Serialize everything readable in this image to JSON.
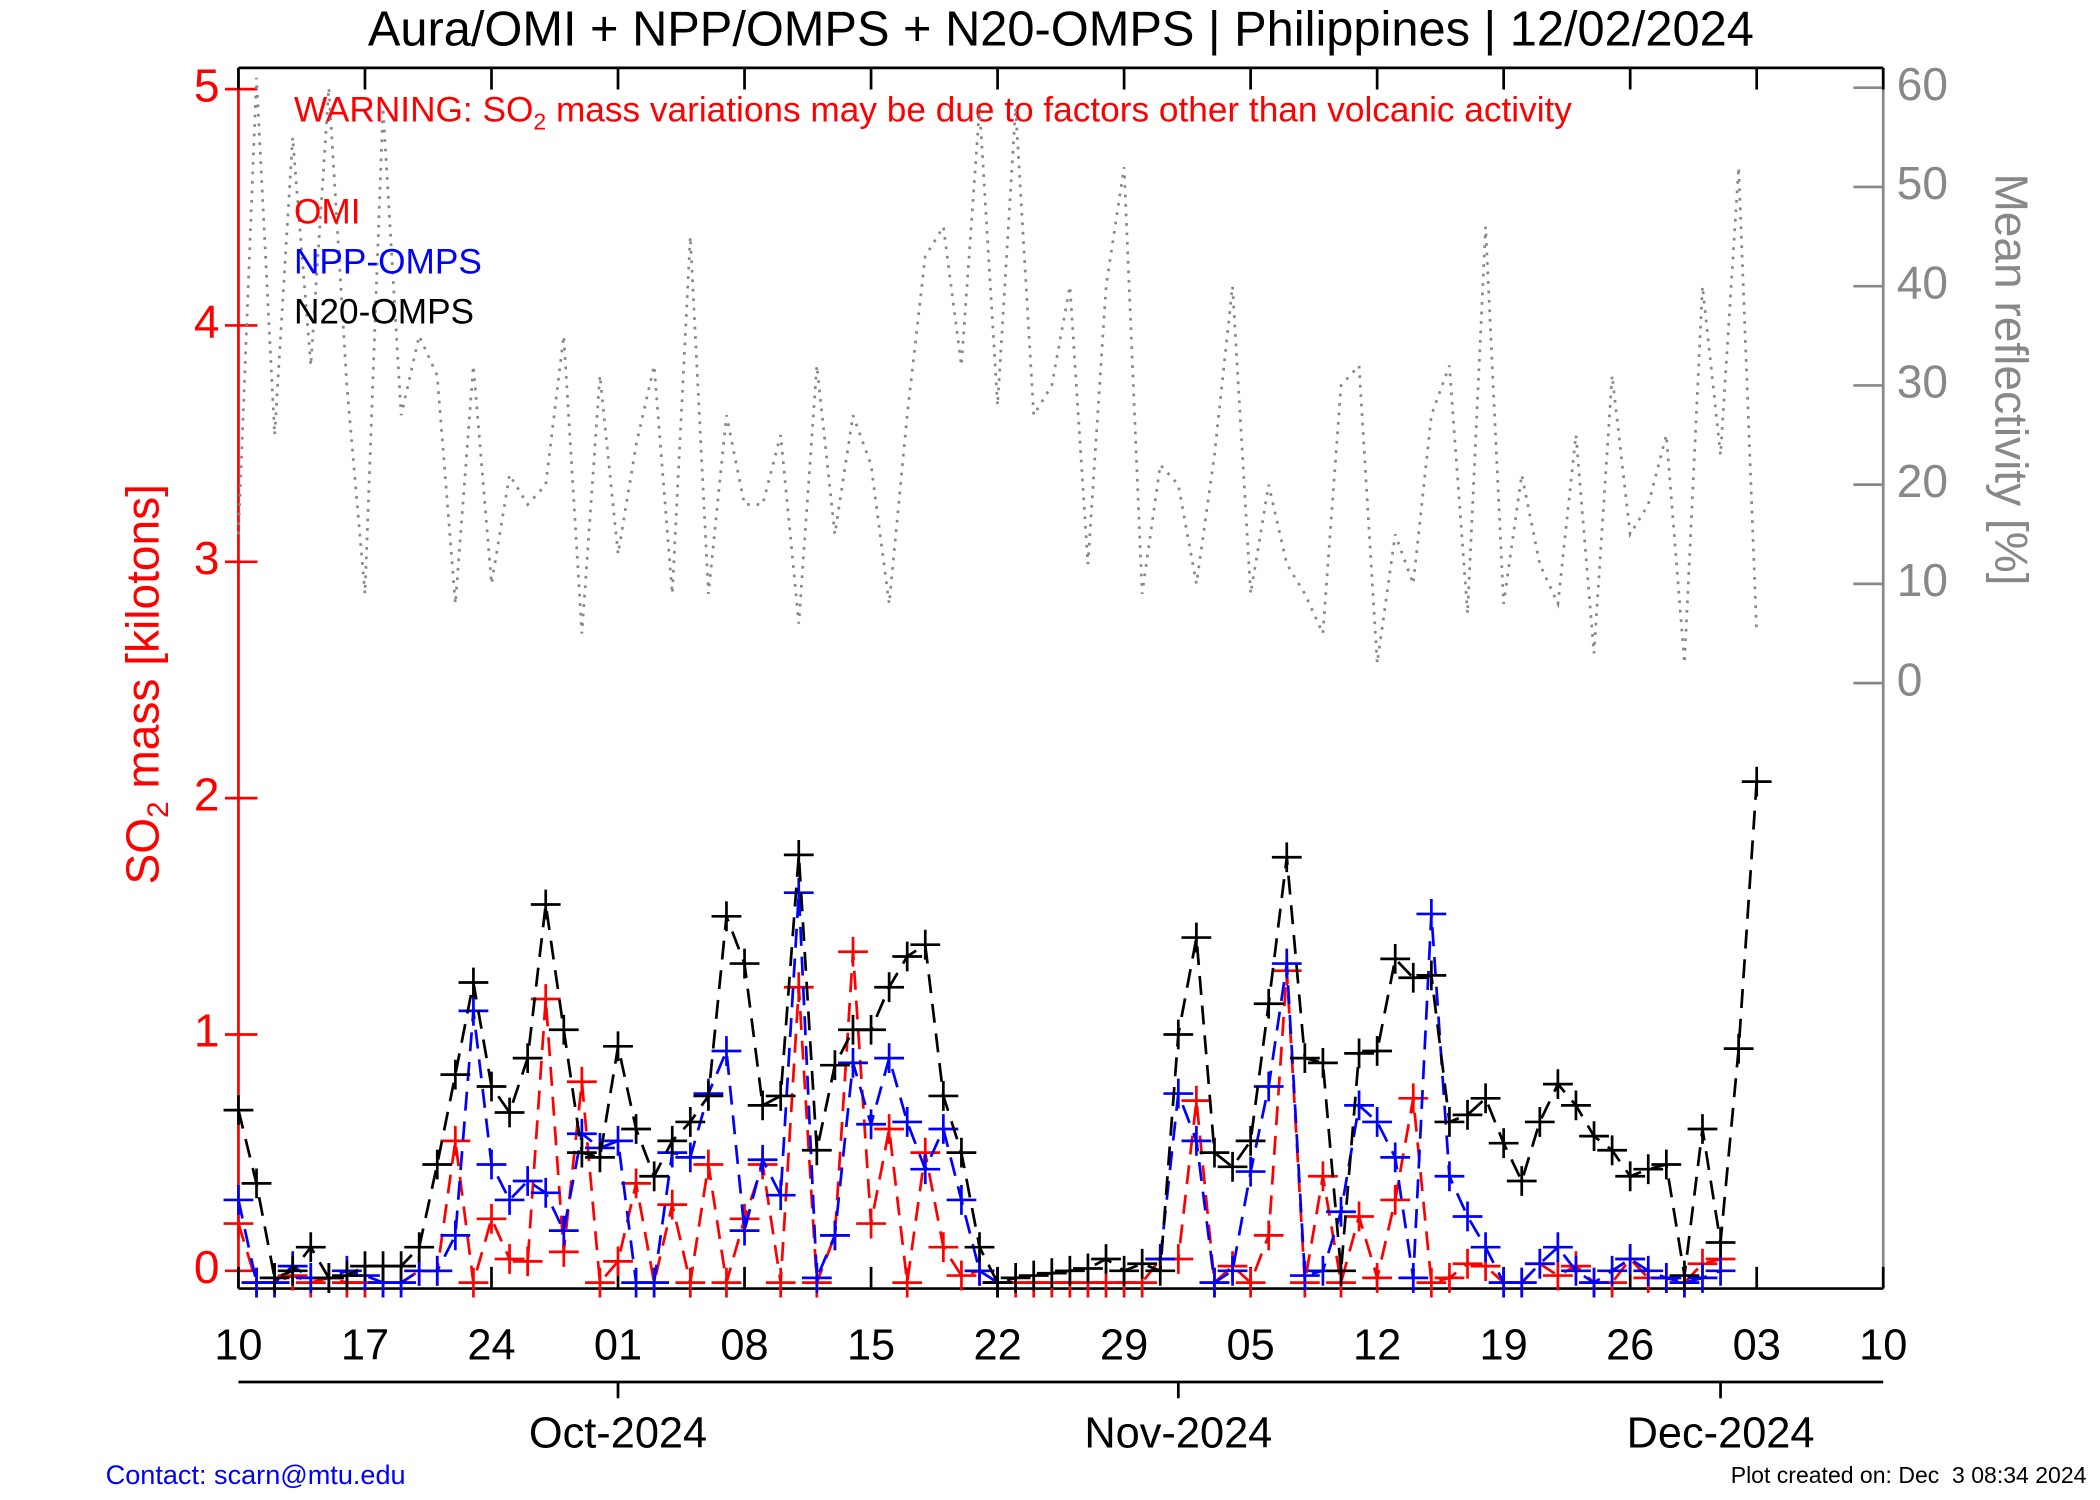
{
  "chart_data": {
    "type": "line",
    "title": "Aura/OMI + NPP/OMPS + N20-OMPS | Philippines | 12/02/2024",
    "warning": [
      "WARNING: SO",
      "2",
      " mass variations may be due to factors other than volcanic activity"
    ],
    "ylabel": [
      "SO",
      "2",
      " mass [kilotons]"
    ],
    "y2label": "Mean reflectivity [%]",
    "contact": "Contact: scarn@mtu.edu",
    "created": "Plot created on: Dec  3 08:34 2024",
    "xlim": [
      "2024-09-10",
      "2024-12-10"
    ],
    "xticks": [
      {
        "value": "2024-09-10",
        "label": "10"
      },
      {
        "value": "2024-09-17",
        "label": "17"
      },
      {
        "value": "2024-09-24",
        "label": "24"
      },
      {
        "value": "2024-10-01",
        "label": "01"
      },
      {
        "value": "2024-10-08",
        "label": "08"
      },
      {
        "value": "2024-10-15",
        "label": "15"
      },
      {
        "value": "2024-10-22",
        "label": "22"
      },
      {
        "value": "2024-10-29",
        "label": "29"
      },
      {
        "value": "2024-11-05",
        "label": "05"
      },
      {
        "value": "2024-11-12",
        "label": "12"
      },
      {
        "value": "2024-11-19",
        "label": "19"
      },
      {
        "value": "2024-11-26",
        "label": "26"
      },
      {
        "value": "2024-12-03",
        "label": "03"
      },
      {
        "value": "2024-12-10",
        "label": "10"
      }
    ],
    "month_ticks": [
      {
        "value": "2024-10-01",
        "label": "Oct-2024"
      },
      {
        "value": "2024-11-01",
        "label": "Nov-2024"
      },
      {
        "value": "2024-12-01",
        "label": "Dec-2024"
      }
    ],
    "ylim": [
      -0.075,
      5.09
    ],
    "yticks": [
      0,
      1,
      2,
      3,
      4,
      5
    ],
    "y2lim": [
      -61,
      62
    ],
    "y2ticks": [
      0,
      10,
      20,
      30,
      40,
      50,
      60
    ],
    "x": [
      "2024-09-10",
      "2024-09-11",
      "2024-09-12",
      "2024-09-13",
      "2024-09-14",
      "2024-09-15",
      "2024-09-16",
      "2024-09-17",
      "2024-09-18",
      "2024-09-19",
      "2024-09-20",
      "2024-09-21",
      "2024-09-22",
      "2024-09-23",
      "2024-09-24",
      "2024-09-25",
      "2024-09-26",
      "2024-09-27",
      "2024-09-28",
      "2024-09-29",
      "2024-09-30",
      "2024-10-01",
      "2024-10-02",
      "2024-10-03",
      "2024-10-04",
      "2024-10-05",
      "2024-10-06",
      "2024-10-07",
      "2024-10-08",
      "2024-10-09",
      "2024-10-10",
      "2024-10-11",
      "2024-10-12",
      "2024-10-13",
      "2024-10-14",
      "2024-10-15",
      "2024-10-16",
      "2024-10-17",
      "2024-10-18",
      "2024-10-19",
      "2024-10-20",
      "2024-10-21",
      "2024-10-22",
      "2024-10-23",
      "2024-10-24",
      "2024-10-25",
      "2024-10-26",
      "2024-10-27",
      "2024-10-28",
      "2024-10-29",
      "2024-10-30",
      "2024-10-31",
      "2024-11-01",
      "2024-11-02",
      "2024-11-03",
      "2024-11-04",
      "2024-11-05",
      "2024-11-06",
      "2024-11-07",
      "2024-11-08",
      "2024-11-09",
      "2024-11-10",
      "2024-11-11",
      "2024-11-12",
      "2024-11-13",
      "2024-11-14",
      "2024-11-15",
      "2024-11-16",
      "2024-11-17",
      "2024-11-18",
      "2024-11-19",
      "2024-11-20",
      "2024-11-21",
      "2024-11-22",
      "2024-11-23",
      "2024-11-24",
      "2024-11-25",
      "2024-11-26",
      "2024-11-27",
      "2024-11-28",
      "2024-11-29",
      "2024-11-30",
      "2024-12-01",
      "2024-12-02",
      "2024-12-03"
    ],
    "series": [
      {
        "axis": "y2",
        "color": "#888888",
        "style": "dotted",
        "values": [
          15,
          61,
          25,
          55,
          32,
          60,
          30,
          9,
          58,
          27,
          35,
          31,
          8,
          32,
          10,
          21,
          18,
          20,
          35,
          5,
          31,
          13,
          24,
          32,
          9,
          45,
          9,
          27,
          18,
          18,
          25,
          6,
          32,
          15,
          27,
          22,
          8,
          27,
          43,
          46,
          32,
          58,
          28,
          58,
          27,
          30,
          40,
          12,
          40,
          52,
          9,
          22,
          20,
          10,
          23,
          40,
          9,
          20,
          12,
          9,
          5,
          30,
          32,
          2,
          15,
          10,
          27,
          32,
          7,
          46,
          8,
          21,
          12,
          8,
          25,
          3,
          31,
          15,
          18,
          25,
          2,
          40,
          23,
          52,
          5
        ]
      },
      {
        "name": "OMI",
        "color": "#ff0000",
        "style": "dashed",
        "values": [
          0.2,
          -0.05,
          -0.05,
          -0.02,
          -0.05,
          -0.03,
          -0.05,
          -0.05,
          -0.05,
          -0.05,
          0,
          0,
          0.55,
          -0.05,
          0.22,
          0.05,
          0.04,
          1.15,
          0.08,
          0.8,
          -0.05,
          0.04,
          0.37,
          -0.05,
          0.28,
          -0.05,
          0.45,
          -0.05,
          0.22,
          0.45,
          -0.05,
          1.2,
          -0.05,
          0.15,
          1.35,
          0.2,
          0.6,
          -0.05,
          0.5,
          0.1,
          -0.02,
          0,
          -0.05,
          -0.05,
          -0.05,
          -0.05,
          -0.05,
          -0.05,
          -0.05,
          -0.05,
          -0.05,
          0.05,
          0.05,
          0.72,
          -0.05,
          0.02,
          -0.05,
          0.15,
          1.27,
          -0.05,
          0.4,
          -0.05,
          0.23,
          -0.03,
          0.3,
          0.73,
          -0.05,
          -0.03,
          0.03,
          0.02,
          -0.05,
          -0.05,
          0.03,
          -0.02,
          0.02,
          -0.05,
          -0.05,
          0.05,
          -0.03,
          -0.03,
          -0.05,
          0.03,
          0.05,
          null,
          null
        ]
      },
      {
        "name": "NPP-OMPS",
        "color": "#0000ff",
        "style": "dashed",
        "values": [
          0.3,
          -0.05,
          -0.05,
          0.02,
          -0.03,
          -0.03,
          0,
          -0.02,
          -0.05,
          -0.05,
          0,
          0,
          0.15,
          1.1,
          0.45,
          0.3,
          0.38,
          0.33,
          0.17,
          0.58,
          0.52,
          0.55,
          -0.05,
          -0.05,
          0.5,
          0.48,
          0.75,
          0.93,
          0.17,
          0.47,
          0.32,
          1.6,
          -0.03,
          0.15,
          0.88,
          0.62,
          0.9,
          0.63,
          0.43,
          0.6,
          0.3,
          0,
          -0.05,
          null,
          null,
          null,
          null,
          null,
          null,
          null,
          null,
          0.05,
          0.75,
          0.55,
          -0.05,
          0,
          0.42,
          0.78,
          1.3,
          -0.02,
          0,
          0.25,
          0.7,
          0.63,
          0.48,
          -0.03,
          1.51,
          0.4,
          0.23,
          0.1,
          -0.05,
          -0.05,
          0.03,
          0.1,
          0,
          -0.05,
          0,
          0.05,
          0,
          -0.03,
          -0.05,
          -0.03,
          0,
          null,
          null
        ]
      },
      {
        "name": "N20-OMPS",
        "color": "#000000",
        "style": "dashed",
        "values": [
          0.68,
          0.37,
          -0.03,
          0,
          0.1,
          -0.03,
          -0.02,
          0.02,
          0.02,
          0.02,
          0.1,
          0.45,
          0.83,
          1.22,
          0.78,
          0.67,
          0.9,
          1.55,
          1.02,
          0.5,
          0.48,
          0.95,
          0.6,
          0.4,
          0.55,
          0.63,
          0.74,
          1.5,
          1.3,
          0.7,
          0.74,
          1.76,
          0.51,
          0.87,
          1.02,
          1.02,
          1.2,
          1.33,
          1.38,
          0.74,
          0.5,
          0.1,
          -0.05,
          -0.03,
          -0.02,
          -0.01,
          0,
          0.01,
          0.05,
          0,
          0.03,
          0,
          1,
          1.41,
          0.5,
          0.44,
          0.55,
          1.13,
          1.75,
          0.9,
          0.88,
          0,
          0.92,
          0.93,
          1.32,
          1.24,
          1.25,
          0.63,
          0.66,
          0.73,
          0.54,
          0.38,
          0.63,
          0.79,
          0.7,
          0.57,
          0.51,
          0.4,
          0.43,
          0.45,
          -0.02,
          0.6,
          0.12,
          0.94,
          2.07
        ]
      }
    ]
  }
}
